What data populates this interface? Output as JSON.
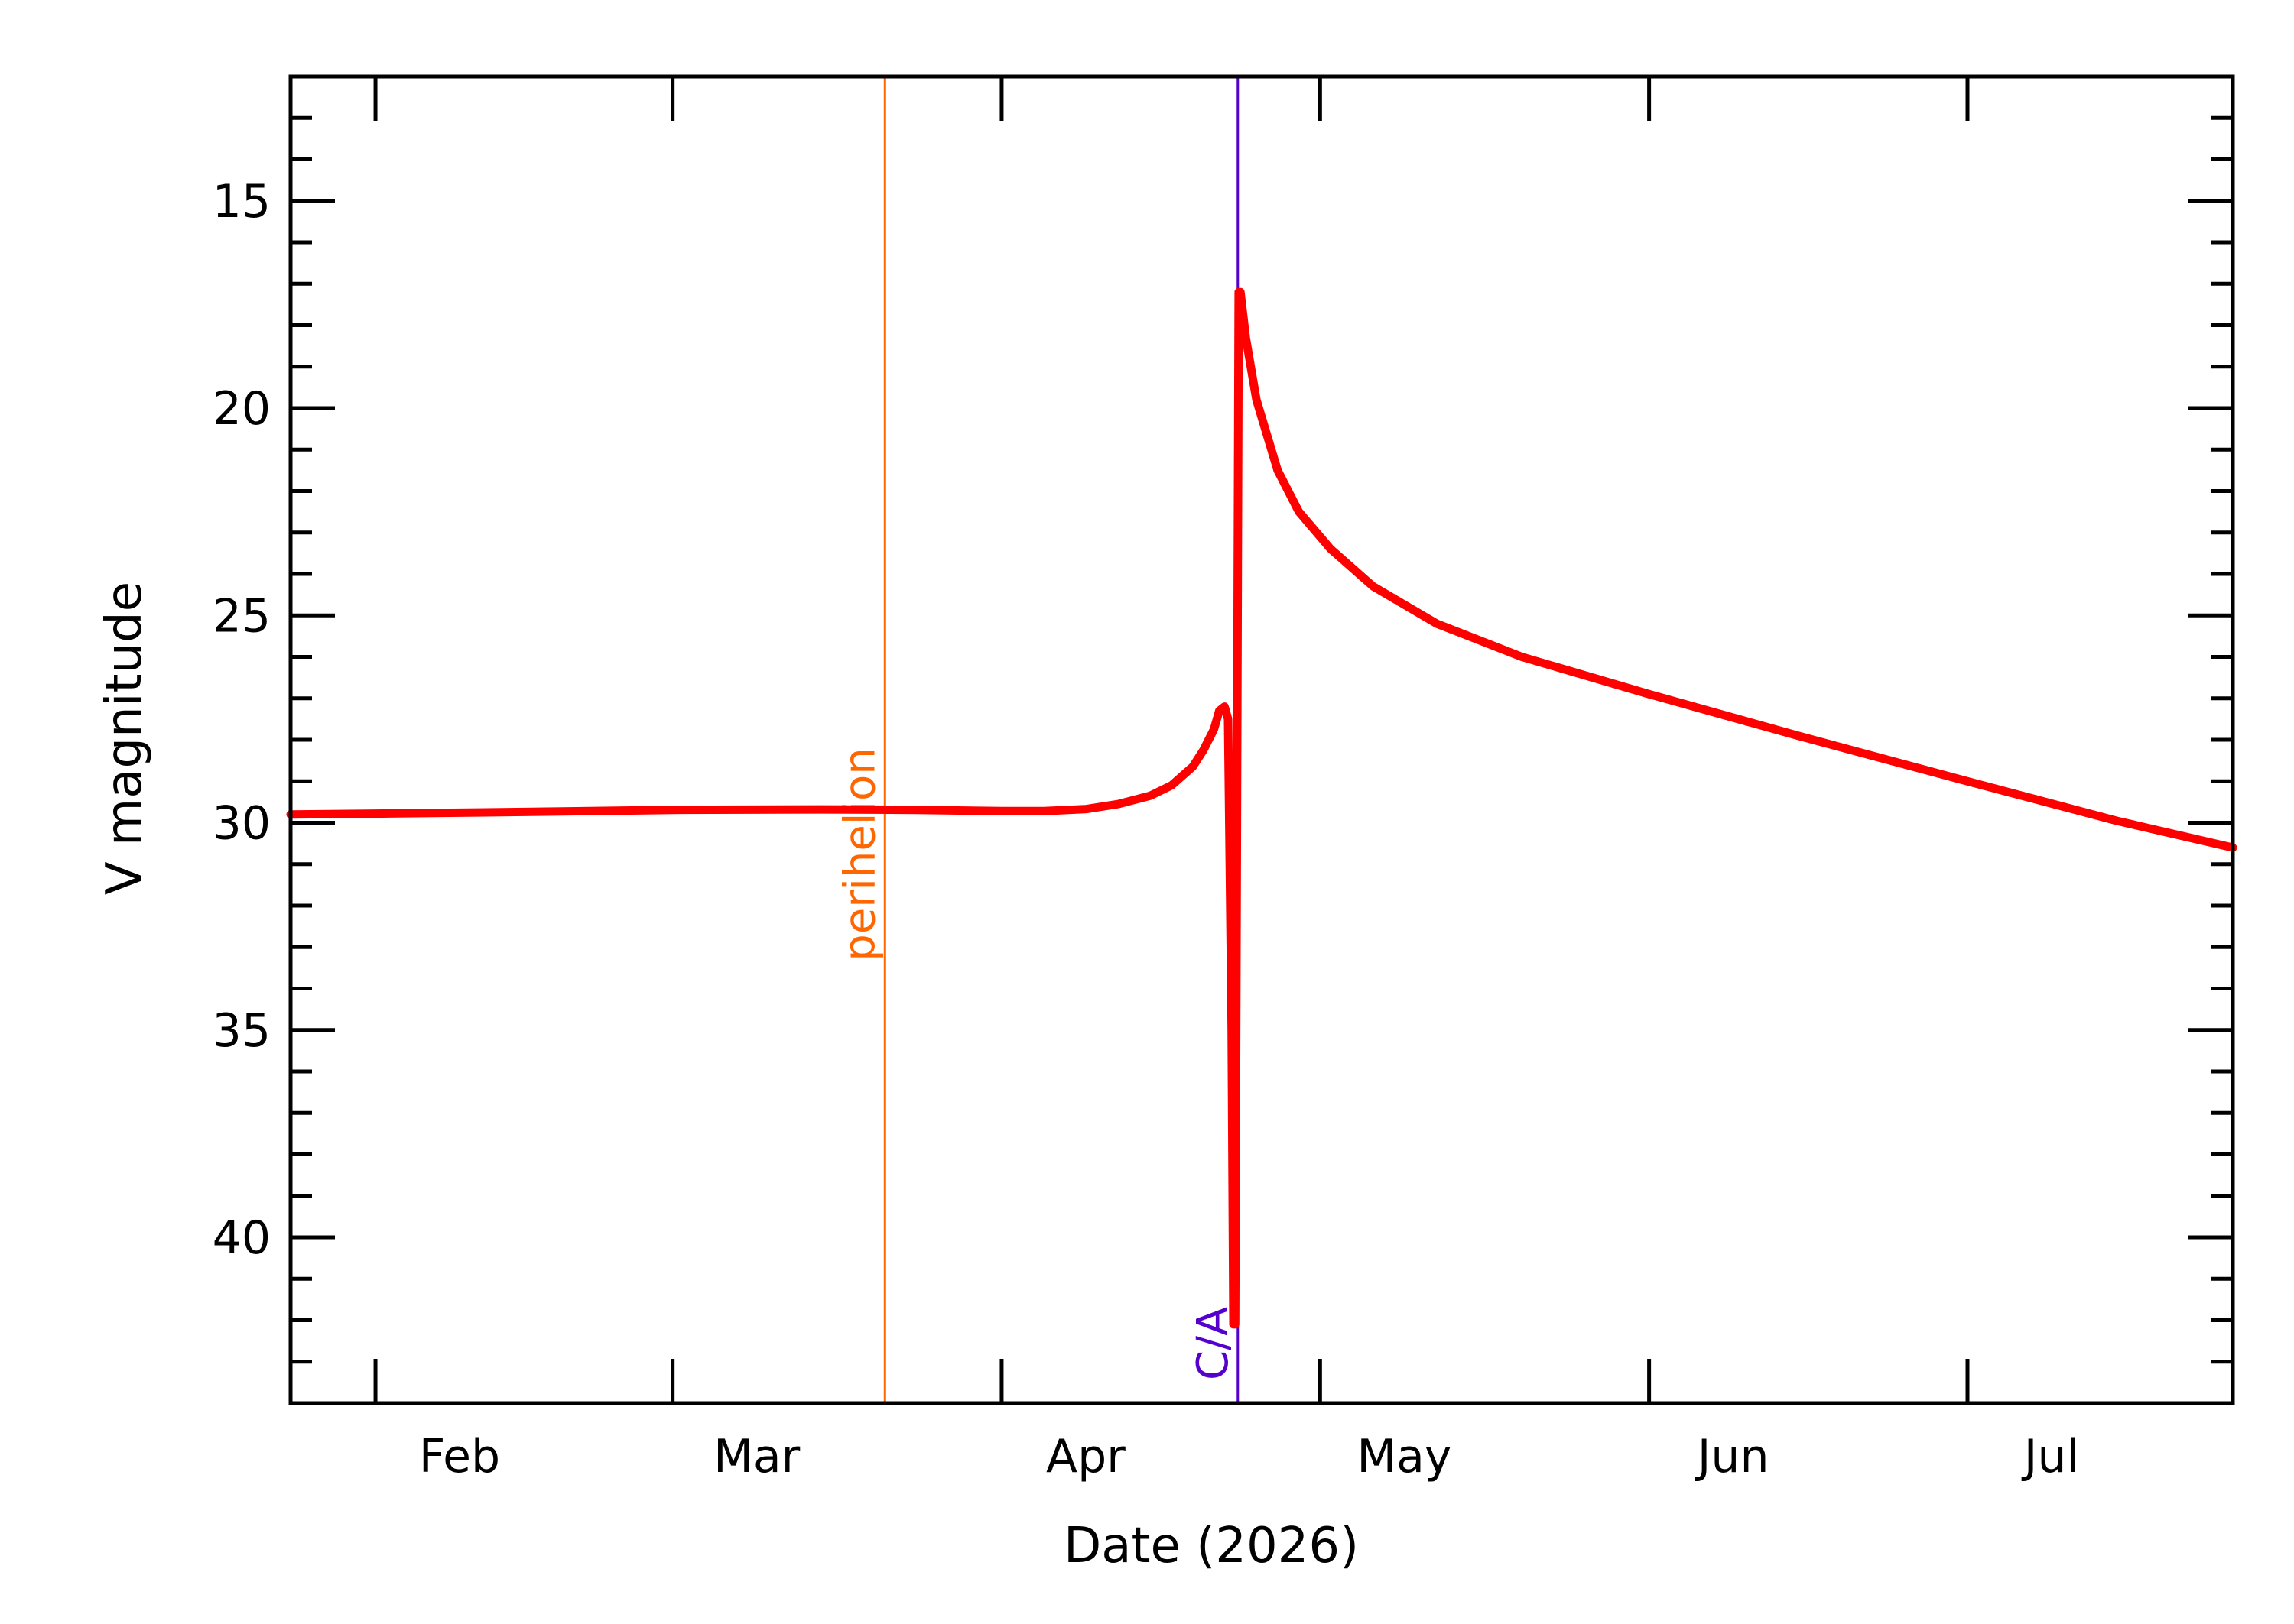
{
  "chart_data": {
    "type": "line",
    "title": "",
    "xlabel": "Date (2026)",
    "ylabel": "V magnitude",
    "x_range": [
      "2026-01-24",
      "2026-07-26"
    ],
    "ylim": [
      44,
      12
    ],
    "y_inverted": true,
    "grid": false,
    "x_tick_dates": [
      "2026-02-01",
      "2026-03-01",
      "2026-04-01",
      "2026-05-01",
      "2026-06-01",
      "2026-07-01"
    ],
    "x_tick_labels": [
      "Feb",
      "Mar",
      "Apr",
      "May",
      "Jun",
      "Jul"
    ],
    "y_ticks": [
      15,
      20,
      25,
      30,
      35,
      40
    ],
    "series": [
      {
        "color": "#ff0000",
        "points": [
          [
            "2026-01-24",
            29.8
          ],
          [
            "2026-02-01",
            29.78
          ],
          [
            "2026-02-15",
            29.74
          ],
          [
            "2026-03-01",
            29.69
          ],
          [
            "2026-03-15",
            29.68
          ],
          [
            "2026-03-24",
            29.69
          ],
          [
            "2026-04-01",
            29.72
          ],
          [
            "2026-04-05",
            29.72
          ],
          [
            "2026-04-09",
            29.67
          ],
          [
            "2026-04-12",
            29.55
          ],
          [
            "2026-04-15",
            29.35
          ],
          [
            "2026-04-17",
            29.1
          ],
          [
            "2026-04-19",
            28.65
          ],
          [
            "2026-04-20",
            28.25
          ],
          [
            "2026-04-21",
            27.75
          ],
          [
            "2026-04-21T12:00",
            27.3
          ],
          [
            "2026-04-22",
            27.2
          ],
          [
            "2026-04-22T08:00",
            27.5
          ],
          [
            "2026-04-22T16:00",
            35.0
          ],
          [
            "2026-04-22T20:00",
            42.1
          ],
          [
            "2026-04-23",
            42.1
          ],
          [
            "2026-04-23T04:00",
            30.0
          ],
          [
            "2026-04-23T08:00",
            17.2
          ],
          [
            "2026-04-23T12:00",
            17.2
          ],
          [
            "2026-04-24",
            18.3
          ],
          [
            "2026-04-25",
            19.8
          ],
          [
            "2026-04-27",
            21.5
          ],
          [
            "2026-04-29",
            22.5
          ],
          [
            "2026-05-02",
            23.4
          ],
          [
            "2026-05-06",
            24.3
          ],
          [
            "2026-05-12",
            25.2
          ],
          [
            "2026-05-20",
            26.0
          ],
          [
            "2026-06-01",
            26.9
          ],
          [
            "2026-06-15",
            27.9
          ],
          [
            "2026-07-01",
            29.0
          ],
          [
            "2026-07-15",
            29.95
          ],
          [
            "2026-07-26",
            30.6
          ]
        ]
      }
    ],
    "markers": [
      {
        "date": "2026-03-21",
        "label": "perihelion",
        "color": "#ff6600",
        "label_position": "mid"
      },
      {
        "date": "2026-04-23T06:00",
        "label": "C/A",
        "color": "#5500cc",
        "label_position": "bottom"
      }
    ]
  }
}
